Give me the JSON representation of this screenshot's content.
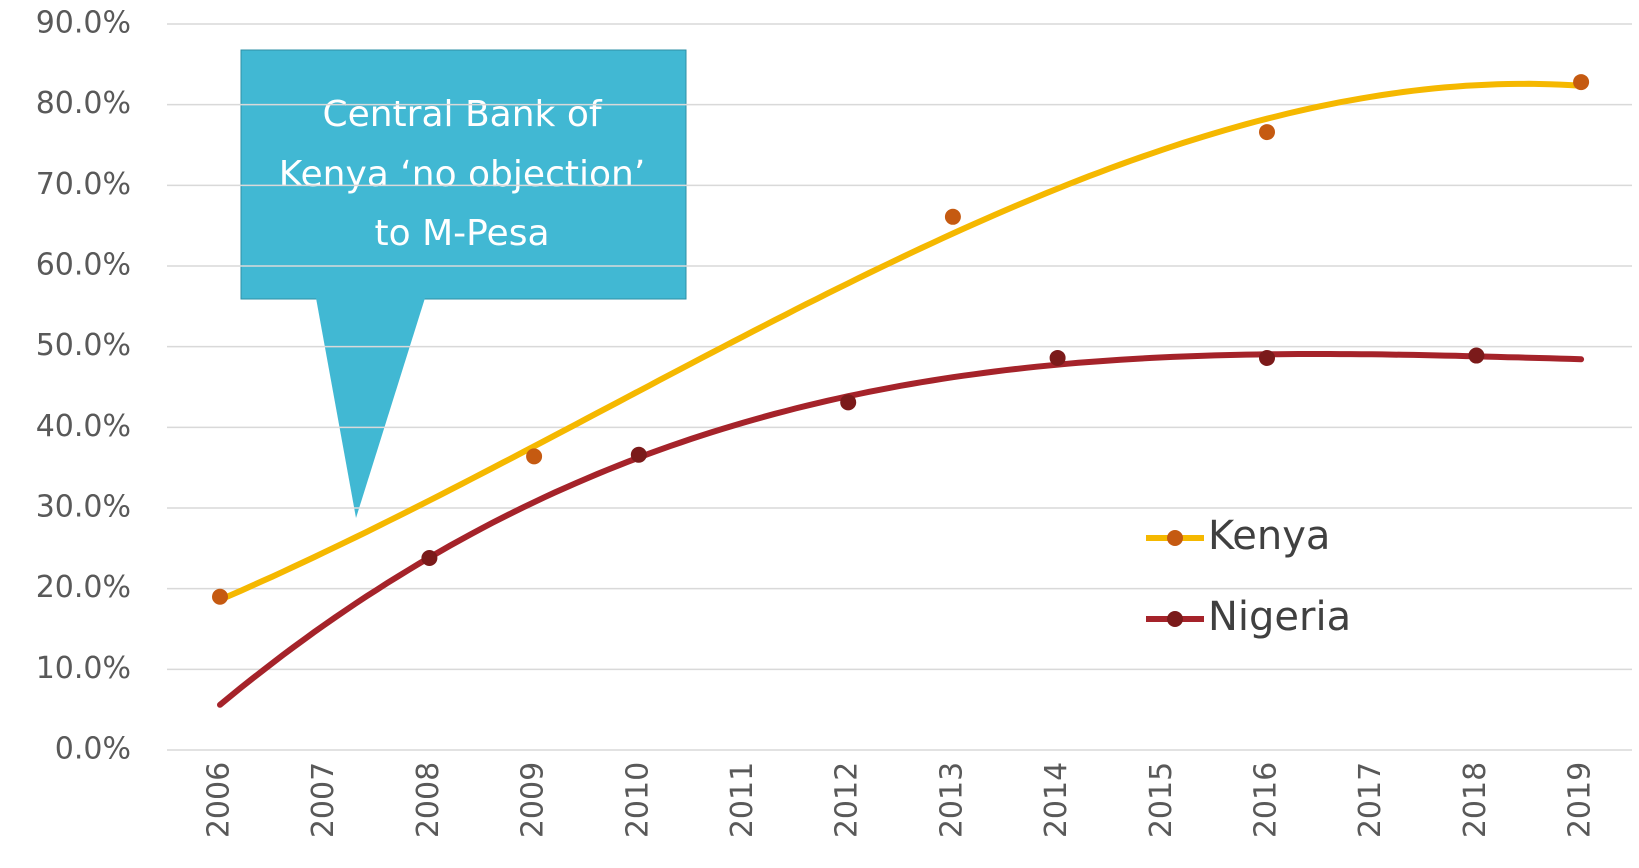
{
  "chart_data": {
    "type": "line",
    "categories": [
      "2006",
      "2007",
      "2008",
      "2009",
      "2010",
      "2011",
      "2012",
      "2013",
      "2014",
      "2015",
      "2016",
      "2017",
      "2018",
      "2019"
    ],
    "series": [
      {
        "name": "Kenya",
        "color": "#F5B800",
        "marker_color": "#C55A11",
        "values": [
          19.0,
          null,
          null,
          36.4,
          null,
          null,
          null,
          66.1,
          null,
          null,
          76.6,
          null,
          null,
          82.8
        ]
      },
      {
        "name": "Nigeria",
        "color": "#A5232A",
        "marker_color": "#7B1A1A",
        "values": [
          null,
          null,
          23.8,
          null,
          36.6,
          null,
          43.1,
          null,
          48.6,
          null,
          48.6,
          null,
          48.9,
          null
        ]
      }
    ],
    "ylim": [
      0,
      90
    ],
    "yticks": [
      {
        "value": 0,
        "label": "0.0%"
      },
      {
        "value": 10,
        "label": "10.0%"
      },
      {
        "value": 20,
        "label": "20.0%"
      },
      {
        "value": 30,
        "label": "30.0%"
      },
      {
        "value": 40,
        "label": "40.0%"
      },
      {
        "value": 50,
        "label": "50.0%"
      },
      {
        "value": 60,
        "label": "60.0%"
      },
      {
        "value": 70,
        "label": "70.0%"
      },
      {
        "value": 80,
        "label": "80.0%"
      },
      {
        "value": 90,
        "label": "90.0%"
      }
    ],
    "grid": true,
    "trendline": "polynomial",
    "legend": "right",
    "annotation": {
      "lines": [
        "Central Bank of",
        "Kenya ‘no objection’",
        "to M-Pesa"
      ]
    }
  }
}
